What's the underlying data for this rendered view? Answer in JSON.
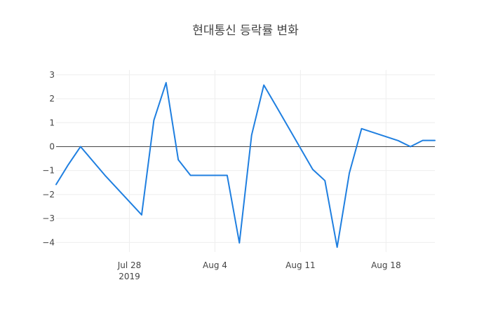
{
  "chart_data": {
    "type": "line",
    "title": "현대통신 등락률 변화",
    "xlabel": "",
    "ylabel": "",
    "x_range": [
      "2019-07-22",
      "2019-08-22"
    ],
    "ylim": [
      -4.4,
      3.2
    ],
    "y_ticks": [
      {
        "value": 3,
        "label": "3"
      },
      {
        "value": 2,
        "label": "2"
      },
      {
        "value": 1,
        "label": "1"
      },
      {
        "value": 0,
        "label": "0"
      },
      {
        "value": -1,
        "label": "−1"
      },
      {
        "value": -2,
        "label": "−2"
      },
      {
        "value": -3,
        "label": "−3"
      },
      {
        "value": -4,
        "label": "−4"
      }
    ],
    "x_ticks": [
      {
        "date": "2019-07-28",
        "label": "Jul 28",
        "sublabel": "2019"
      },
      {
        "date": "2019-08-04",
        "label": "Aug 4",
        "sublabel": ""
      },
      {
        "date": "2019-08-11",
        "label": "Aug 11",
        "sublabel": ""
      },
      {
        "date": "2019-08-18",
        "label": "Aug 18",
        "sublabel": ""
      }
    ],
    "grid": true,
    "zero_line": true,
    "series": [
      {
        "color": "#1f7fe0",
        "x": [
          "2019-07-22",
          "2019-07-23",
          "2019-07-24",
          "2019-07-25",
          "2019-07-26",
          "2019-07-29",
          "2019-07-30",
          "2019-07-31",
          "2019-08-01",
          "2019-08-02",
          "2019-08-05",
          "2019-08-06",
          "2019-08-07",
          "2019-08-08",
          "2019-08-09",
          "2019-08-12",
          "2019-08-13",
          "2019-08-14",
          "2019-08-15",
          "2019-08-16",
          "2019-08-19",
          "2019-08-20",
          "2019-08-21",
          "2019-08-22"
        ],
        "y": [
          -1.58,
          -0.75,
          0.0,
          -0.6,
          -1.2,
          -2.85,
          1.1,
          2.67,
          -0.55,
          -1.2,
          -1.2,
          -4.02,
          0.48,
          2.57,
          1.7,
          -0.95,
          -1.42,
          -4.2,
          -1.1,
          0.75,
          0.25,
          0.0,
          0.26,
          0.26
        ]
      }
    ]
  }
}
